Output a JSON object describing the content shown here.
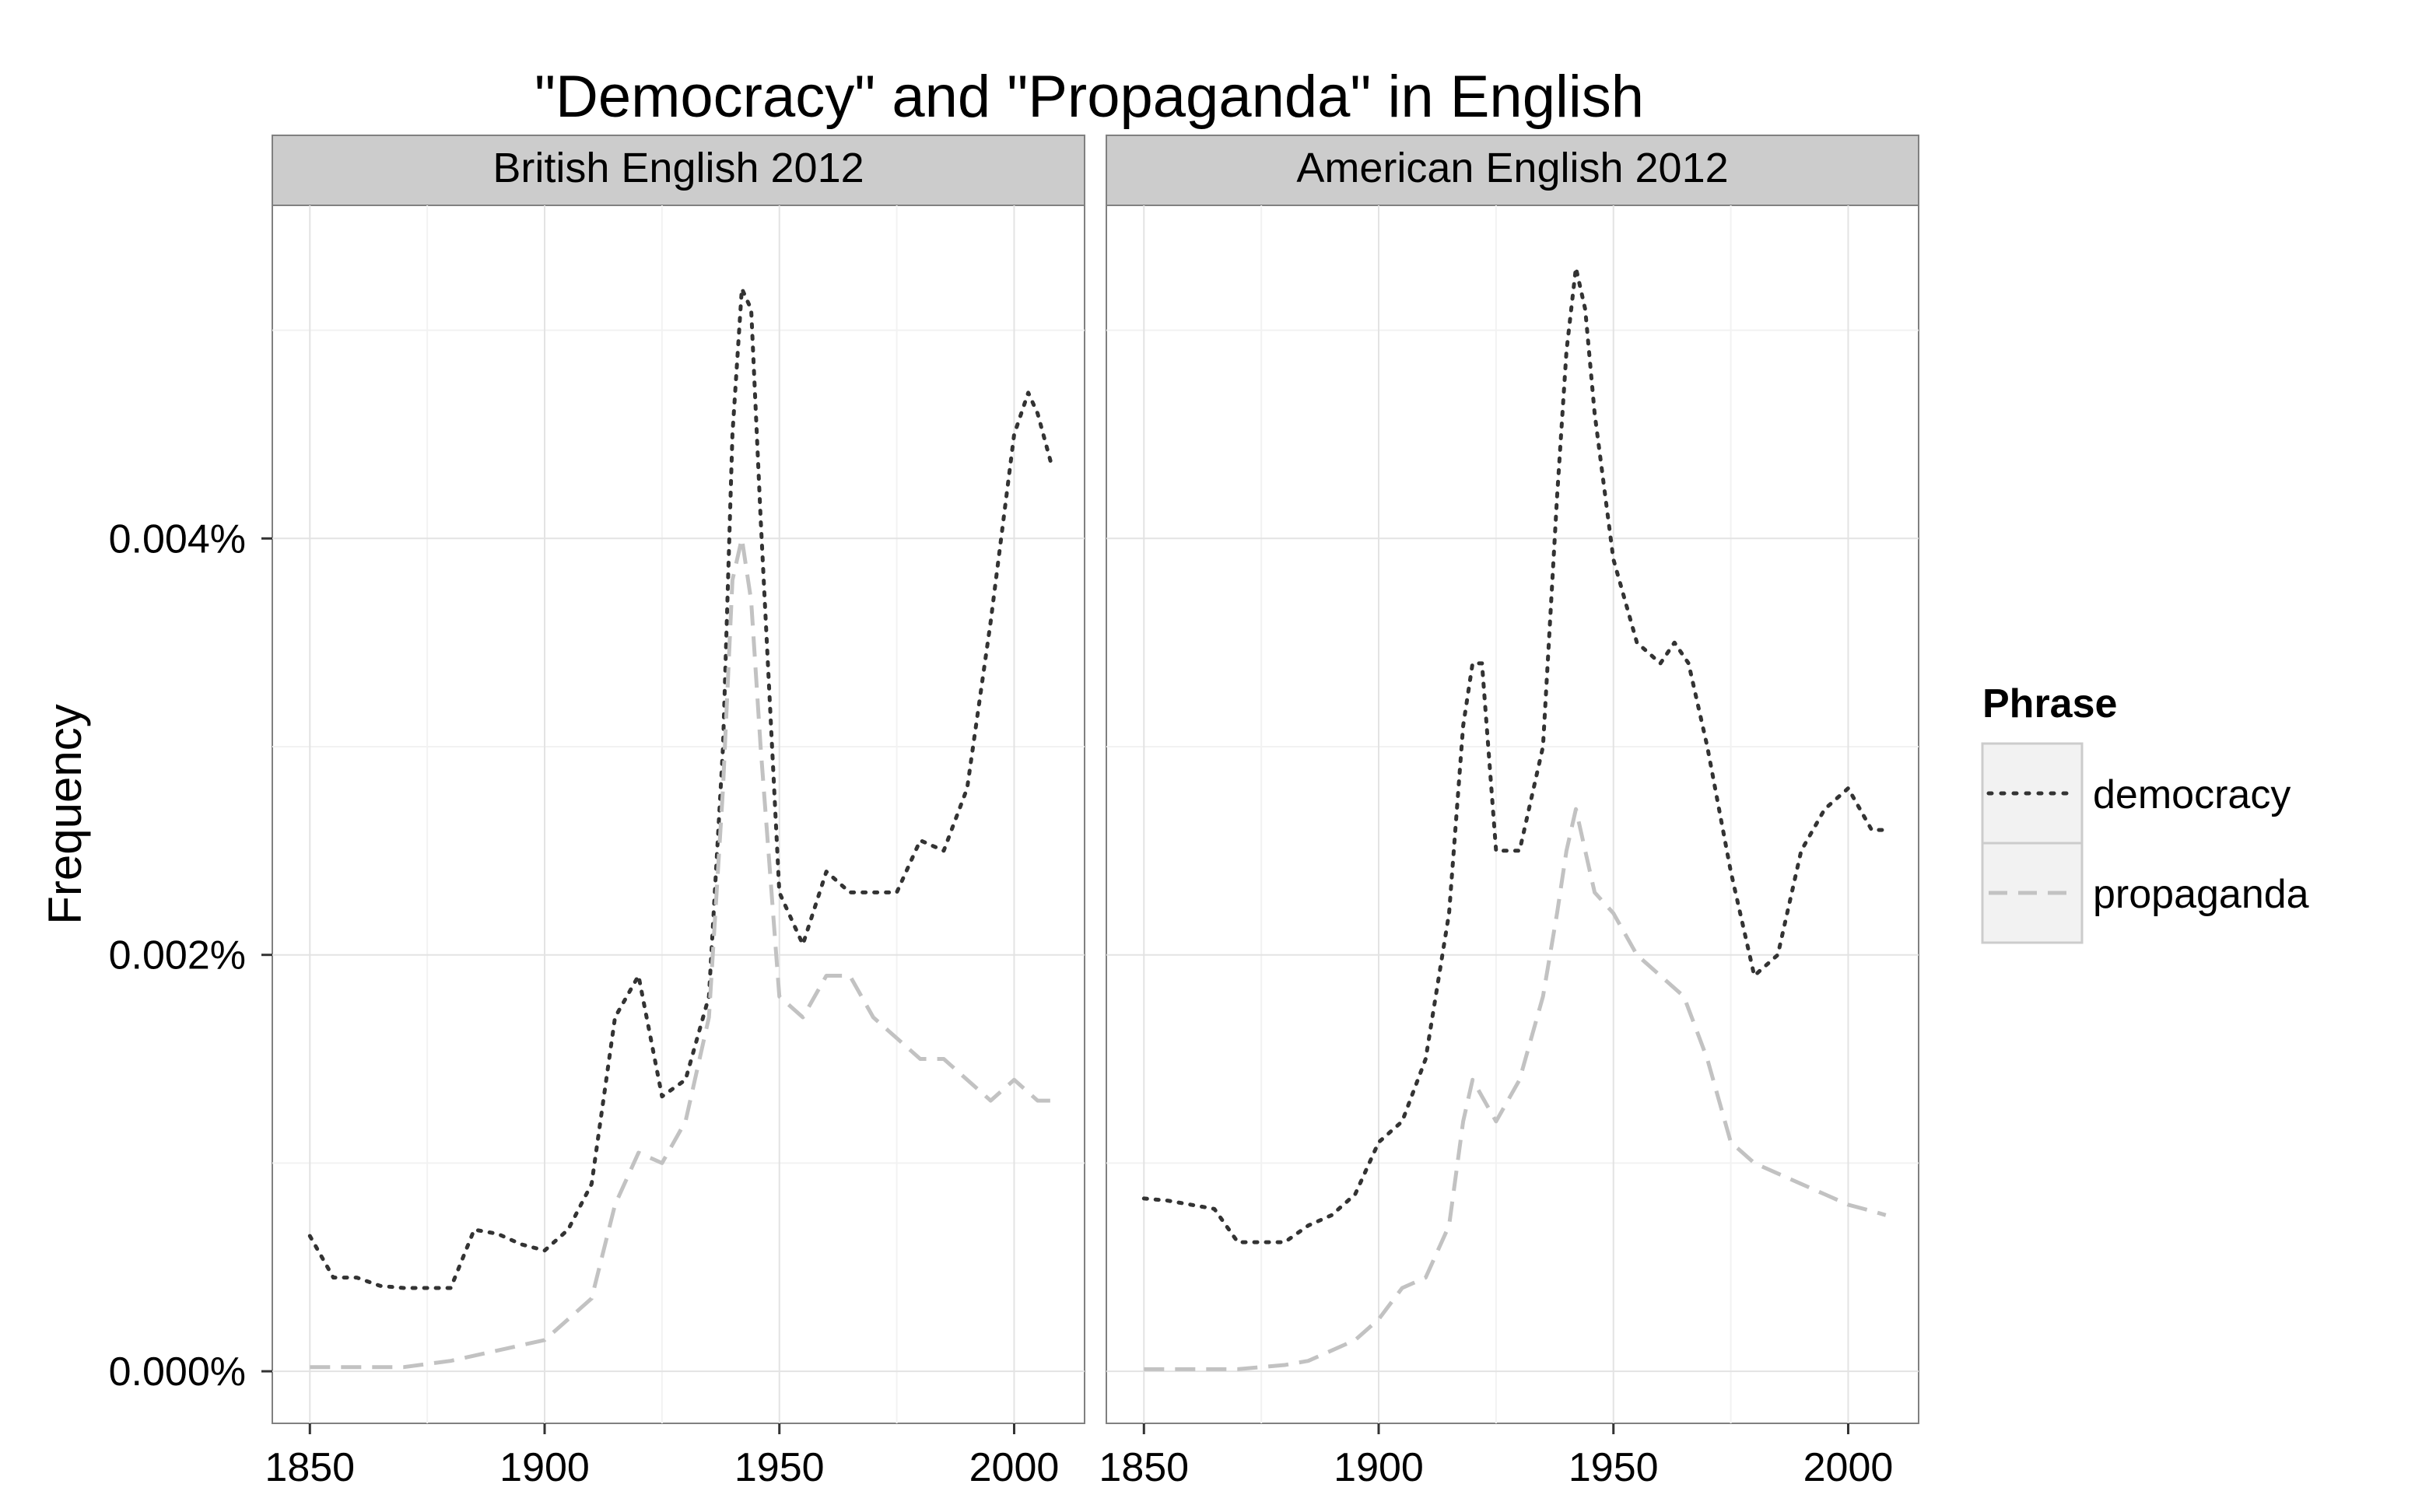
{
  "chart_data": {
    "type": "line",
    "title": "\"Democracy\" and \"Propaganda\" in English",
    "xlabel": "",
    "ylabel": "Frequency",
    "xlim": [
      1842,
      2015
    ],
    "ylim": [
      -0.00025,
      0.0056
    ],
    "x_ticks": [
      1850,
      1900,
      1950,
      2000
    ],
    "x_tick_labels": [
      "1850",
      "1900",
      "1950",
      "2000"
    ],
    "y_ticks": [
      0.0,
      0.002,
      0.004
    ],
    "y_tick_labels": [
      "0.000%",
      "0.002%",
      "0.004%"
    ],
    "grid": true,
    "legend": {
      "title": "Phrase",
      "placement": "right",
      "entries": [
        "democracy",
        "propaganda"
      ]
    },
    "series_styles": [
      {
        "name": "democracy",
        "color": "#333333",
        "dash": "dotted"
      },
      {
        "name": "propaganda",
        "color": "#c2c2c2",
        "dash": "dashed"
      }
    ],
    "panels": [
      {
        "title": "British English 2012",
        "series": [
          {
            "name": "democracy",
            "x": [
              1850,
              1855,
              1860,
              1865,
              1870,
              1875,
              1880,
              1885,
              1890,
              1895,
              1900,
              1905,
              1910,
              1915,
              1920,
              1925,
              1930,
              1935,
              1938,
              1940,
              1942,
              1944,
              1946,
              1950,
              1955,
              1960,
              1965,
              1970,
              1975,
              1980,
              1985,
              1990,
              1995,
              2000,
              2003,
              2005,
              2008
            ],
            "y": [
              0.00065,
              0.00045,
              0.00045,
              0.00041,
              0.0004,
              0.0004,
              0.0004,
              0.00068,
              0.00066,
              0.00061,
              0.00058,
              0.00068,
              0.0009,
              0.0017,
              0.0019,
              0.00132,
              0.0014,
              0.0018,
              0.003,
              0.0045,
              0.0052,
              0.0051,
              0.0041,
              0.0023,
              0.00205,
              0.0024,
              0.0023,
              0.0023,
              0.0023,
              0.00255,
              0.0025,
              0.0028,
              0.0036,
              0.0045,
              0.0047,
              0.0046,
              0.00435
            ]
          },
          {
            "name": "propaganda",
            "x": [
              1850,
              1860,
              1870,
              1880,
              1890,
              1900,
              1905,
              1910,
              1915,
              1920,
              1925,
              1930,
              1935,
              1938,
              1940,
              1942,
              1944,
              1946,
              1950,
              1955,
              1960,
              1965,
              1970,
              1975,
              1980,
              1985,
              1990,
              1995,
              2000,
              2005,
              2008
            ],
            "y": [
              2e-05,
              2e-05,
              2e-05,
              5e-05,
              0.0001,
              0.00015,
              0.00025,
              0.00035,
              0.0008,
              0.00105,
              0.001,
              0.0012,
              0.0017,
              0.0028,
              0.0038,
              0.004,
              0.0037,
              0.003,
              0.0018,
              0.0017,
              0.0019,
              0.0019,
              0.0017,
              0.0016,
              0.0015,
              0.0015,
              0.0014,
              0.0013,
              0.0014,
              0.0013,
              0.0013
            ]
          }
        ]
      },
      {
        "title": "American English 2012",
        "series": [
          {
            "name": "democracy",
            "x": [
              1850,
              1855,
              1860,
              1865,
              1870,
              1875,
              1880,
              1885,
              1890,
              1895,
              1900,
              1905,
              1910,
              1915,
              1918,
              1920,
              1922,
              1925,
              1930,
              1935,
              1938,
              1940,
              1942,
              1944,
              1946,
              1950,
              1955,
              1960,
              1963,
              1966,
              1970,
              1975,
              1980,
              1985,
              1990,
              1995,
              2000,
              2005,
              2008
            ],
            "y": [
              0.00083,
              0.00082,
              0.0008,
              0.00078,
              0.00062,
              0.00062,
              0.00062,
              0.0007,
              0.00075,
              0.00085,
              0.0011,
              0.0012,
              0.0015,
              0.0022,
              0.0031,
              0.0034,
              0.0034,
              0.0025,
              0.0025,
              0.003,
              0.0042,
              0.0049,
              0.0053,
              0.0051,
              0.0046,
              0.0039,
              0.0035,
              0.0034,
              0.0035,
              0.0034,
              0.003,
              0.0024,
              0.0019,
              0.002,
              0.0025,
              0.0027,
              0.0028,
              0.0026,
              0.0026
            ]
          },
          {
            "name": "propaganda",
            "x": [
              1850,
              1855,
              1860,
              1865,
              1870,
              1875,
              1880,
              1885,
              1890,
              1895,
              1900,
              1905,
              1910,
              1915,
              1918,
              1920,
              1925,
              1930,
              1935,
              1938,
              1940,
              1942,
              1944,
              1946,
              1950,
              1955,
              1960,
              1965,
              1970,
              1975,
              1980,
              1985,
              1990,
              1995,
              2000,
              2005,
              2008
            ],
            "y": [
              1e-05,
              1e-05,
              1e-05,
              1e-05,
              1e-05,
              2e-05,
              3e-05,
              5e-05,
              0.0001,
              0.00015,
              0.00025,
              0.0004,
              0.00045,
              0.0007,
              0.0012,
              0.0014,
              0.0012,
              0.0014,
              0.0018,
              0.0022,
              0.0025,
              0.0027,
              0.0025,
              0.0023,
              0.0022,
              0.002,
              0.0019,
              0.0018,
              0.0015,
              0.0011,
              0.001,
              0.00095,
              0.0009,
              0.00085,
              0.0008,
              0.00077,
              0.00075
            ]
          }
        ]
      }
    ]
  }
}
